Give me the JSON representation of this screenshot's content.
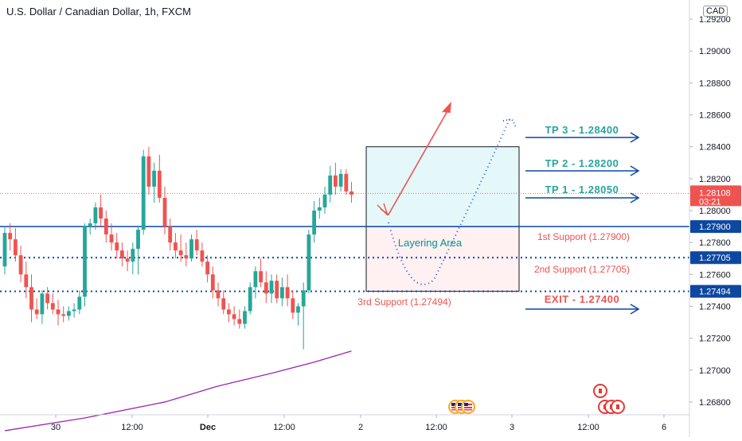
{
  "chart_data": {
    "type": "candlestick",
    "title": "U.S. Dollar / Canadian Dollar, 1h, FXCM",
    "currency": "CAD",
    "ylim": [
      1.2672,
      1.293
    ],
    "x_ticks": [
      "30",
      "12:00",
      "Dec",
      "12:00",
      "2",
      "12:00",
      "3",
      "12:00",
      "6"
    ],
    "y_ticks": [
      "1.29200",
      "1.29000",
      "1.28800",
      "1.28600",
      "1.28400",
      "1.28200",
      "1.28000",
      "1.27800",
      "1.27600",
      "1.27400",
      "1.27200",
      "1.27000",
      "1.26800"
    ],
    "colors": {
      "up": "#26a69a",
      "down": "#ef5350",
      "line_blue": "#0d47a1",
      "ma": "#9c27b0",
      "tp": "#26a69a",
      "support": "#ef5350"
    },
    "current_price": {
      "value": "1.28108",
      "countdown": "03:21"
    },
    "price_tags": [
      "1.27900",
      "1.27705",
      "1.27494"
    ],
    "candles": [
      [
        1.2765,
        1.279,
        1.276,
        1.2786
      ],
      [
        1.2786,
        1.2792,
        1.2775,
        1.2782
      ],
      [
        1.2782,
        1.2789,
        1.2768,
        1.2772
      ],
      [
        1.2772,
        1.2778,
        1.2755,
        1.276
      ],
      [
        1.276,
        1.2768,
        1.2745,
        1.2752
      ],
      [
        1.2752,
        1.276,
        1.273,
        1.2738
      ],
      [
        1.2738,
        1.2745,
        1.2732,
        1.2735
      ],
      [
        1.2735,
        1.275,
        1.2729,
        1.2748
      ],
      [
        1.2748,
        1.2752,
        1.2738,
        1.2742
      ],
      [
        1.2742,
        1.2748,
        1.2735,
        1.2738
      ],
      [
        1.2738,
        1.2744,
        1.2728,
        1.2735
      ],
      [
        1.2735,
        1.274,
        1.273,
        1.2734
      ],
      [
        1.2734,
        1.274,
        1.2731,
        1.2737
      ],
      [
        1.2737,
        1.2742,
        1.2733,
        1.2738
      ],
      [
        1.2738,
        1.275,
        1.2735,
        1.2746
      ],
      [
        1.2746,
        1.2792,
        1.274,
        1.279
      ],
      [
        1.279,
        1.2795,
        1.2785,
        1.2792
      ],
      [
        1.2792,
        1.2805,
        1.2788,
        1.2802
      ],
      [
        1.2802,
        1.281,
        1.279,
        1.2795
      ],
      [
        1.2795,
        1.28,
        1.278,
        1.2785
      ],
      [
        1.2785,
        1.2792,
        1.2775,
        1.278
      ],
      [
        1.278,
        1.2786,
        1.277,
        1.2775
      ],
      [
        1.2775,
        1.278,
        1.2765,
        1.277
      ],
      [
        1.277,
        1.2775,
        1.2762,
        1.2768
      ],
      [
        1.2768,
        1.278,
        1.276,
        1.2776
      ],
      [
        1.2776,
        1.279,
        1.276,
        1.2788
      ],
      [
        1.2788,
        1.2838,
        1.2785,
        1.2834
      ],
      [
        1.2834,
        1.284,
        1.281,
        1.2815
      ],
      [
        1.2815,
        1.283,
        1.2805,
        1.2825
      ],
      [
        1.2825,
        1.2835,
        1.2805,
        1.2808
      ],
      [
        1.2808,
        1.2815,
        1.2785,
        1.279
      ],
      [
        1.279,
        1.2795,
        1.2775,
        1.278
      ],
      [
        1.278,
        1.2786,
        1.277,
        1.2775
      ],
      [
        1.2775,
        1.2785,
        1.2768,
        1.2772
      ],
      [
        1.2772,
        1.278,
        1.2765,
        1.277
      ],
      [
        1.277,
        1.2785,
        1.2768,
        1.2782
      ],
      [
        1.2782,
        1.2788,
        1.2772,
        1.2775
      ],
      [
        1.2775,
        1.278,
        1.2765,
        1.2768
      ],
      [
        1.2768,
        1.2772,
        1.2755,
        1.276
      ],
      [
        1.276,
        1.2765,
        1.2745,
        1.275
      ],
      [
        1.275,
        1.2755,
        1.274,
        1.2745
      ],
      [
        1.2745,
        1.275,
        1.2735,
        1.2738
      ],
      [
        1.2738,
        1.2742,
        1.273,
        1.2735
      ],
      [
        1.2735,
        1.274,
        1.2728,
        1.2732
      ],
      [
        1.2732,
        1.2738,
        1.2726,
        1.2729
      ],
      [
        1.2729,
        1.274,
        1.2726,
        1.2737
      ],
      [
        1.2737,
        1.2755,
        1.2735,
        1.2752
      ],
      [
        1.2752,
        1.2765,
        1.2745,
        1.2762
      ],
      [
        1.2762,
        1.277,
        1.2752,
        1.2755
      ],
      [
        1.2755,
        1.2762,
        1.2742,
        1.2748
      ],
      [
        1.2748,
        1.276,
        1.2742,
        1.2756
      ],
      [
        1.2756,
        1.276,
        1.2742,
        1.2745
      ],
      [
        1.2745,
        1.2758,
        1.274,
        1.2752
      ],
      [
        1.2752,
        1.276,
        1.274,
        1.2745
      ],
      [
        1.2745,
        1.275,
        1.2732,
        1.2736
      ],
      [
        1.2736,
        1.2742,
        1.2728,
        1.274
      ],
      [
        1.274,
        1.2755,
        1.2713,
        1.275
      ],
      [
        1.275,
        1.2788,
        1.2748,
        1.2785
      ],
      [
        1.2785,
        1.2806,
        1.278,
        1.28
      ],
      [
        1.28,
        1.2808,
        1.2795,
        1.2802
      ],
      [
        1.2802,
        1.2815,
        1.2798,
        1.281
      ],
      [
        1.281,
        1.2828,
        1.2805,
        1.2822
      ],
      [
        1.2822,
        1.283,
        1.281,
        1.2815
      ],
      [
        1.2815,
        1.2826,
        1.2812,
        1.2823
      ],
      [
        1.2823,
        1.2826,
        1.281,
        1.2812
      ],
      [
        1.2812,
        1.2818,
        1.2805,
        1.281
      ]
    ],
    "moving_average": [
      [
        0,
        1.2662
      ],
      [
        15,
        1.267
      ],
      [
        30,
        1.268
      ],
      [
        40,
        1.269
      ],
      [
        50,
        1.2698
      ],
      [
        58,
        1.2705
      ],
      [
        65,
        1.2712
      ]
    ],
    "zone_upper": {
      "top": 1.284,
      "bottom": 1.279
    },
    "zone_lower": {
      "top": 1.279,
      "bottom": 1.27494
    },
    "horizontal_lines": [
      {
        "value": 1.279,
        "style": "solid"
      },
      {
        "value": 1.27705,
        "style": "dotted"
      },
      {
        "value": 1.27494,
        "style": "dotted"
      }
    ],
    "levels": [
      {
        "text": "TP 3 - 1.28400",
        "value": 1.284,
        "kind": "tp",
        "arrow": true
      },
      {
        "text": "TP 2 - 1.28200",
        "value": 1.282,
        "kind": "tp",
        "arrow": true
      },
      {
        "text": "TP 1 - 1.28050",
        "value": 1.2805,
        "kind": "tp",
        "arrow": true
      },
      {
        "text": "1st Support (1.27900)",
        "value": 1.279,
        "kind": "support",
        "arrow": false
      },
      {
        "text": "2nd Support (1.27705)",
        "value": 1.27705,
        "kind": "support",
        "arrow": false
      },
      {
        "text": "3rd Support (1.27494)",
        "value": 1.27494,
        "kind": "support",
        "arrow": false
      },
      {
        "text": "EXIT - 1.27400",
        "value": 1.274,
        "kind": "exit",
        "arrow": true
      }
    ],
    "annotation": "Layering Area"
  }
}
